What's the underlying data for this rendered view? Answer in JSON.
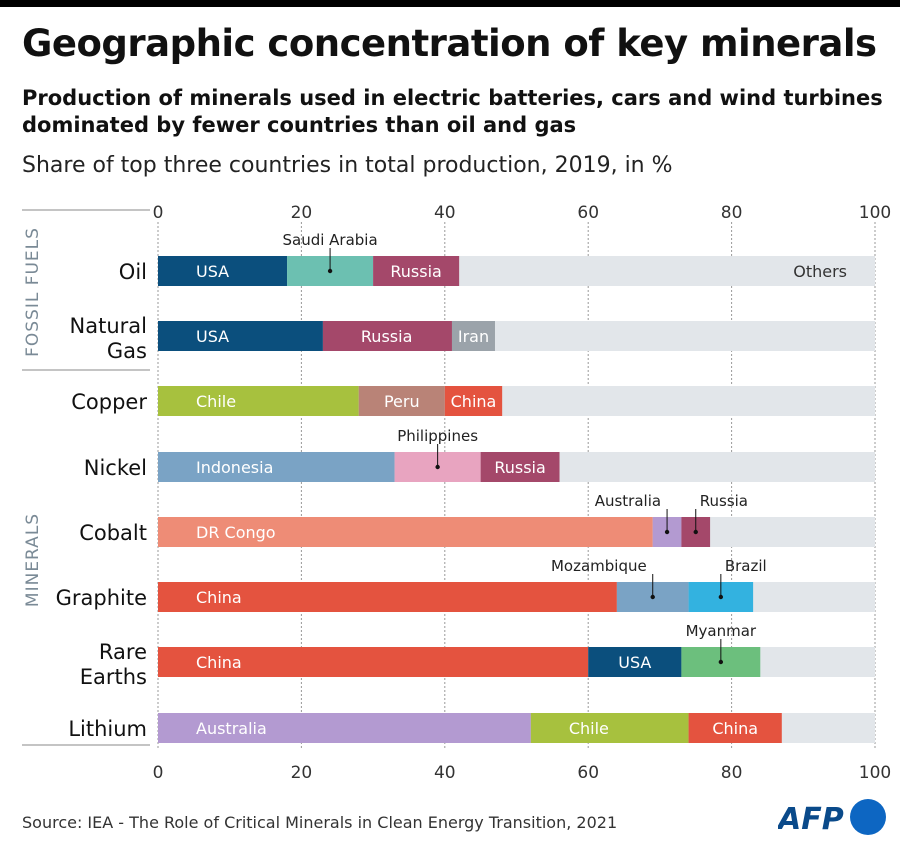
{
  "title": "Geographic concentration of key minerals",
  "subtitle": "Production of minerals used in electric batteries, cars and wind turbines dominated by fewer countries than oil and gas",
  "measure": "Share of top three countries in total production, 2019, in %",
  "source": "Source: IEA - The Role of Critical Minerals in Clean Energy Transition, 2021",
  "logo_text": "AFP",
  "colors": {
    "others": "#e2e6ea",
    "grid": "#999999"
  },
  "chart_data": {
    "type": "bar",
    "orientation": "horizontal",
    "stacked": true,
    "title": "Geographic concentration of key minerals",
    "xlabel": "Share of top three countries in total production, 2019, in %",
    "xlim": [
      0,
      100
    ],
    "xticks": [
      0,
      20,
      40,
      60,
      80,
      100
    ],
    "groups": [
      {
        "label": "FOSSIL FUELS",
        "rows": [
          "Oil",
          "Natural Gas"
        ]
      },
      {
        "label": "MINERALS",
        "rows": [
          "Copper",
          "Nickel",
          "Cobalt",
          "Graphite",
          "Rare Earths",
          "Lithium"
        ]
      }
    ],
    "rows": [
      {
        "category": "Oil",
        "label_lines": [
          "Oil"
        ],
        "others_label": "Others",
        "segments": [
          {
            "country": "USA",
            "value": 18,
            "color": "#0b4f7d",
            "label": "inside"
          },
          {
            "country": "Saudi Arabia",
            "value": 12,
            "color": "#6cc0b1",
            "label": "above"
          },
          {
            "country": "Russia",
            "value": 12,
            "color": "#a4486a",
            "label": "inside"
          }
        ]
      },
      {
        "category": "Natural Gas",
        "label_lines": [
          "Natural",
          "Gas"
        ],
        "others_label": "",
        "segments": [
          {
            "country": "USA",
            "value": 23,
            "color": "#0b4f7d",
            "label": "inside"
          },
          {
            "country": "Russia",
            "value": 18,
            "color": "#a4486a",
            "label": "inside"
          },
          {
            "country": "Iran",
            "value": 6,
            "color": "#9ba3aa",
            "label": "inside"
          }
        ]
      },
      {
        "category": "Copper",
        "label_lines": [
          "Copper"
        ],
        "others_label": "",
        "segments": [
          {
            "country": "Chile",
            "value": 28,
            "color": "#a7c13e",
            "label": "inside"
          },
          {
            "country": "Peru",
            "value": 12,
            "color": "#b98377",
            "label": "inside"
          },
          {
            "country": "China",
            "value": 8,
            "color": "#e4533f",
            "label": "inside"
          }
        ]
      },
      {
        "category": "Nickel",
        "label_lines": [
          "Nickel"
        ],
        "others_label": "",
        "segments": [
          {
            "country": "Indonesia",
            "value": 33,
            "color": "#7aa3c5",
            "label": "inside"
          },
          {
            "country": "Philippines",
            "value": 12,
            "color": "#e8a4c0",
            "label": "above"
          },
          {
            "country": "Russia",
            "value": 11,
            "color": "#a4486a",
            "label": "inside"
          }
        ]
      },
      {
        "category": "Cobalt",
        "label_lines": [
          "Cobalt"
        ],
        "others_label": "",
        "segments": [
          {
            "country": "DR Congo",
            "value": 69,
            "color": "#ee8c76",
            "label": "inside"
          },
          {
            "country": "Australia",
            "value": 4,
            "color": "#b39ad1",
            "label": "above"
          },
          {
            "country": "Russia",
            "value": 4,
            "color": "#a4486a",
            "label": "above"
          }
        ]
      },
      {
        "category": "Graphite",
        "label_lines": [
          "Graphite"
        ],
        "others_label": "",
        "segments": [
          {
            "country": "China",
            "value": 64,
            "color": "#e4533f",
            "label": "inside"
          },
          {
            "country": "Mozambique",
            "value": 10,
            "color": "#7aa3c5",
            "label": "above"
          },
          {
            "country": "Brazil",
            "value": 9,
            "color": "#33b2e0",
            "label": "above"
          }
        ]
      },
      {
        "category": "Rare Earths",
        "label_lines": [
          "Rare",
          "Earths"
        ],
        "others_label": "",
        "segments": [
          {
            "country": "China",
            "value": 60,
            "color": "#e4533f",
            "label": "inside"
          },
          {
            "country": "USA",
            "value": 13,
            "color": "#0b4f7d",
            "label": "inside"
          },
          {
            "country": "Myanmar",
            "value": 11,
            "color": "#6cbf7d",
            "label": "above"
          }
        ]
      },
      {
        "category": "Lithium",
        "label_lines": [
          "Lithium"
        ],
        "others_label": "",
        "segments": [
          {
            "country": "Australia",
            "value": 52,
            "color": "#b39ad1",
            "label": "inside"
          },
          {
            "country": "Chile",
            "value": 22,
            "color": "#a7c13e",
            "label": "inside"
          },
          {
            "country": "China",
            "value": 13,
            "color": "#e4533f",
            "label": "inside"
          }
        ]
      }
    ]
  }
}
